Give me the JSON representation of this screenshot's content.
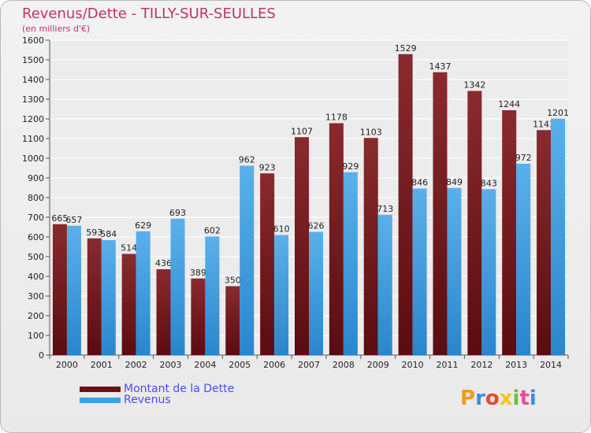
{
  "title": "Revenus/Dette - TILLY-SUR-SEULLES",
  "subtitle": "(en milliers d'€)",
  "logo": {
    "text": "Proxiti",
    "colors": [
      "#f39a1a",
      "#3a8fd6",
      "#e84a2a",
      "#f5c518",
      "#6cbf3a",
      "#e84a9a",
      "#3a8fd6"
    ]
  },
  "chart_data": {
    "type": "bar",
    "categories": [
      "2000",
      "2001",
      "2002",
      "2003",
      "2004",
      "2005",
      "2006",
      "2007",
      "2008",
      "2009",
      "2010",
      "2011",
      "2012",
      "2013",
      "2014"
    ],
    "series": [
      {
        "name": "Montant de la Dette",
        "color": "#7a1a1e",
        "values": [
          665,
          593,
          514,
          436,
          389,
          350,
          923,
          1107,
          1178,
          1103,
          1529,
          1437,
          1342,
          1244,
          1143
        ]
      },
      {
        "name": "Revenus",
        "color": "#3f9fe0",
        "values": [
          657,
          584,
          629,
          693,
          602,
          962,
          610,
          626,
          929,
          713,
          846,
          849,
          843,
          972,
          1201
        ]
      }
    ],
    "data_labels": [
      [
        "665",
        "593",
        "514",
        "436",
        "389",
        "350",
        "923",
        "1107",
        "1178",
        "1103",
        "1529",
        "1437",
        "1342",
        "1244",
        "1143"
      ],
      [
        "657",
        "584",
        "629",
        "693",
        "602",
        "962",
        "610",
        "626",
        "929",
        "713",
        "846",
        "849",
        "843",
        "972",
        "1201"
      ]
    ],
    "ylim": [
      0,
      1600
    ],
    "yticks": [
      "0",
      "100",
      "200",
      "300",
      "400",
      "500",
      "600",
      "700",
      "800",
      "900",
      "1000",
      "1100",
      "1200",
      "1300",
      "1400",
      "1500",
      "1600"
    ],
    "grid": true,
    "legend_position": "bottom-left"
  }
}
